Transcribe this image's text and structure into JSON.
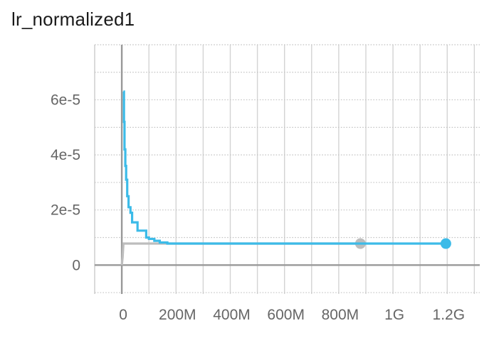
{
  "chart_data": {
    "type": "line",
    "title": "lr_normalized1",
    "xlabel": "",
    "ylabel": "",
    "xlim": [
      -100000000,
      1320000000
    ],
    "ylim": [
      -1.05e-05,
      8e-05
    ],
    "grid": true,
    "x_ticks": [
      {
        "value": 0,
        "label": "0"
      },
      {
        "value": 200000000,
        "label": "200M"
      },
      {
        "value": 400000000,
        "label": "400M"
      },
      {
        "value": 600000000,
        "label": "600M"
      },
      {
        "value": 800000000,
        "label": "800M"
      },
      {
        "value": 1000000000,
        "label": "1G"
      },
      {
        "value": 1200000000,
        "label": "1.2G"
      }
    ],
    "x_minor_step": 100000000,
    "y_ticks": [
      {
        "value": 0,
        "label": "0"
      },
      {
        "value": 2e-05,
        "label": "2e-5"
      },
      {
        "value": 4e-05,
        "label": "4e-5"
      },
      {
        "value": 6e-05,
        "label": "6e-5"
      }
    ],
    "y_minor_step": 1e-05,
    "series": [
      {
        "color": "#bdbdbd",
        "points": [
          [
            0,
            0
          ],
          [
            3000000,
            2.8e-06
          ],
          [
            6000000,
            7.8e-06
          ],
          [
            880000000,
            7.8e-06
          ]
        ],
        "end_marker": true
      },
      {
        "color": "#3cbbe8",
        "points": [
          [
            6000000,
            6.3e-05
          ],
          [
            8000000,
            6.3e-05
          ],
          [
            8000000,
            5.2e-05
          ],
          [
            10000000,
            5.2e-05
          ],
          [
            10000000,
            4.2e-05
          ],
          [
            13000000,
            4.2e-05
          ],
          [
            13000000,
            3.6e-05
          ],
          [
            16000000,
            3.6e-05
          ],
          [
            16000000,
            3.1e-05
          ],
          [
            20000000,
            3.1e-05
          ],
          [
            20000000,
            2.5e-05
          ],
          [
            25000000,
            2.5e-05
          ],
          [
            25000000,
            2.1e-05
          ],
          [
            32000000,
            2.1e-05
          ],
          [
            32000000,
            1.9e-05
          ],
          [
            38000000,
            1.9e-05
          ],
          [
            38000000,
            1.55e-05
          ],
          [
            58000000,
            1.55e-05
          ],
          [
            58000000,
            1.25e-05
          ],
          [
            90000000,
            1.25e-05
          ],
          [
            90000000,
            1e-05
          ],
          [
            100000000,
            1e-05
          ],
          [
            100000000,
            9.5e-06
          ],
          [
            120000000,
            9.5e-06
          ],
          [
            120000000,
            8.8e-06
          ],
          [
            140000000,
            8.8e-06
          ],
          [
            140000000,
            8.2e-06
          ],
          [
            168000000,
            8.2e-06
          ],
          [
            168000000,
            7.8e-06
          ],
          [
            1195000000,
            7.8e-06
          ]
        ],
        "end_marker": true
      }
    ]
  },
  "colors": {
    "axis": "#999999",
    "grid": "#d3d3d3"
  }
}
